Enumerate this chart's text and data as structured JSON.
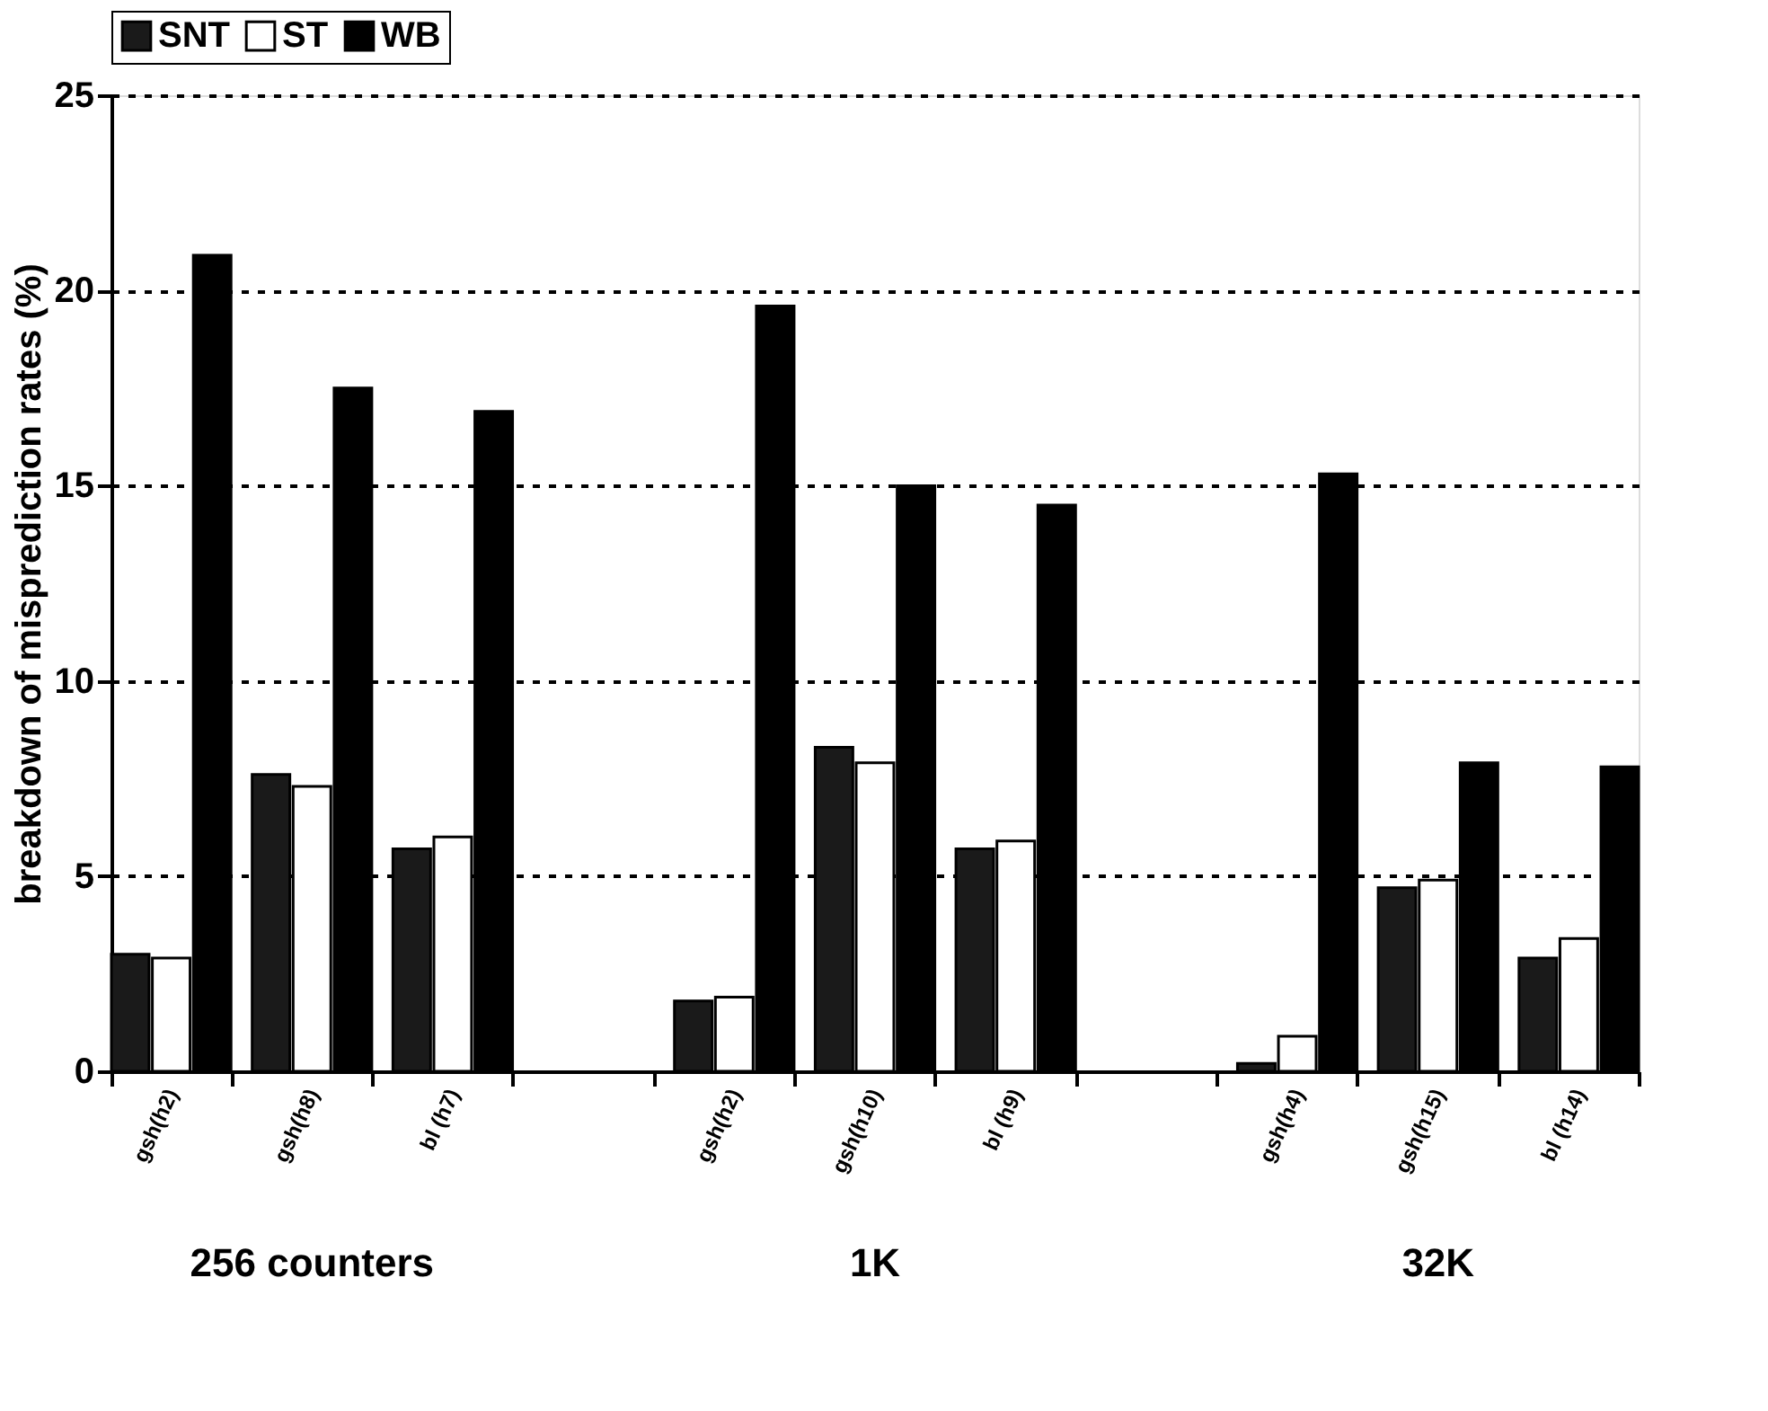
{
  "chart_data": {
    "type": "bar",
    "ylabel": "breakdown of misprediction rates (%)",
    "categories": [
      "gsh(h2)",
      "gsh(h8)",
      "bl (h7)",
      null,
      "gsh(h2)",
      "gsh(h10)",
      "bl (h9)",
      null,
      "gsh(h4)",
      "gsh(h15)",
      "bl (h14)"
    ],
    "series": [
      {
        "name": "SNT",
        "color": "#1a1a1a",
        "values": [
          3.0,
          7.6,
          5.7,
          null,
          1.8,
          8.3,
          5.7,
          null,
          0.2,
          4.7,
          2.9
        ]
      },
      {
        "name": "ST",
        "color": "#ffffff",
        "values": [
          2.9,
          7.3,
          6.0,
          null,
          1.9,
          7.9,
          5.9,
          null,
          0.9,
          4.9,
          3.4
        ]
      },
      {
        "name": "WB",
        "color": "#000000",
        "values": [
          20.9,
          17.5,
          16.9,
          null,
          19.6,
          15.0,
          14.5,
          null,
          15.3,
          7.9,
          7.8
        ]
      }
    ],
    "ylim": [
      0,
      25
    ],
    "yticks": [
      0,
      5,
      10,
      15,
      20,
      25
    ],
    "grid": "y",
    "legend": "top",
    "annotations": [
      "256 counters",
      "1K",
      "32K"
    ]
  }
}
